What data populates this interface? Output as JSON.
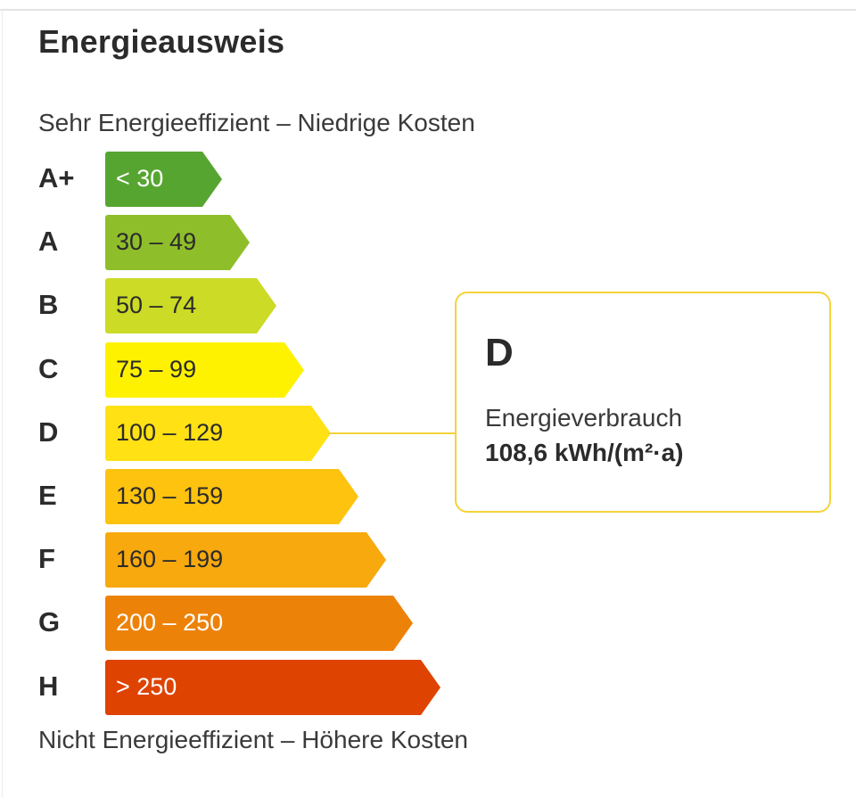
{
  "title": "Energieausweis",
  "scale": {
    "top_caption": "Sehr Energieeffizient – Niedrige Kosten",
    "bottom_caption": "Nicht Energieeffizient – Höhere Kosten"
  },
  "classes": [
    {
      "letter": "A+",
      "range": "< 30",
      "color": "#57a531",
      "text_color": "#ffffff"
    },
    {
      "letter": "A",
      "range": "30 – 49",
      "color": "#8fbe2b",
      "text_color": "#2b2b2b"
    },
    {
      "letter": "B",
      "range": "50 – 74",
      "color": "#cbdb26",
      "text_color": "#2b2b2b"
    },
    {
      "letter": "C",
      "range": "75 – 99",
      "color": "#fff200",
      "text_color": "#2b2b2b"
    },
    {
      "letter": "D",
      "range": "100 – 129",
      "color": "#ffe114",
      "text_color": "#2b2b2b"
    },
    {
      "letter": "E",
      "range": "130 – 159",
      "color": "#fdc30f",
      "text_color": "#2b2b2b"
    },
    {
      "letter": "F",
      "range": "160 – 199",
      "color": "#f7a90e",
      "text_color": "#2b2b2b"
    },
    {
      "letter": "G",
      "range": "200 – 250",
      "color": "#ed8209",
      "text_color": "#ffffff"
    },
    {
      "letter": "H",
      "range": "> 250",
      "color": "#df4302",
      "text_color": "#ffffff"
    }
  ],
  "result": {
    "class": "D",
    "label": "Energieverbrauch",
    "value": "108,6 kWh/(m²·a)",
    "accent_color": "#f5d23a"
  }
}
